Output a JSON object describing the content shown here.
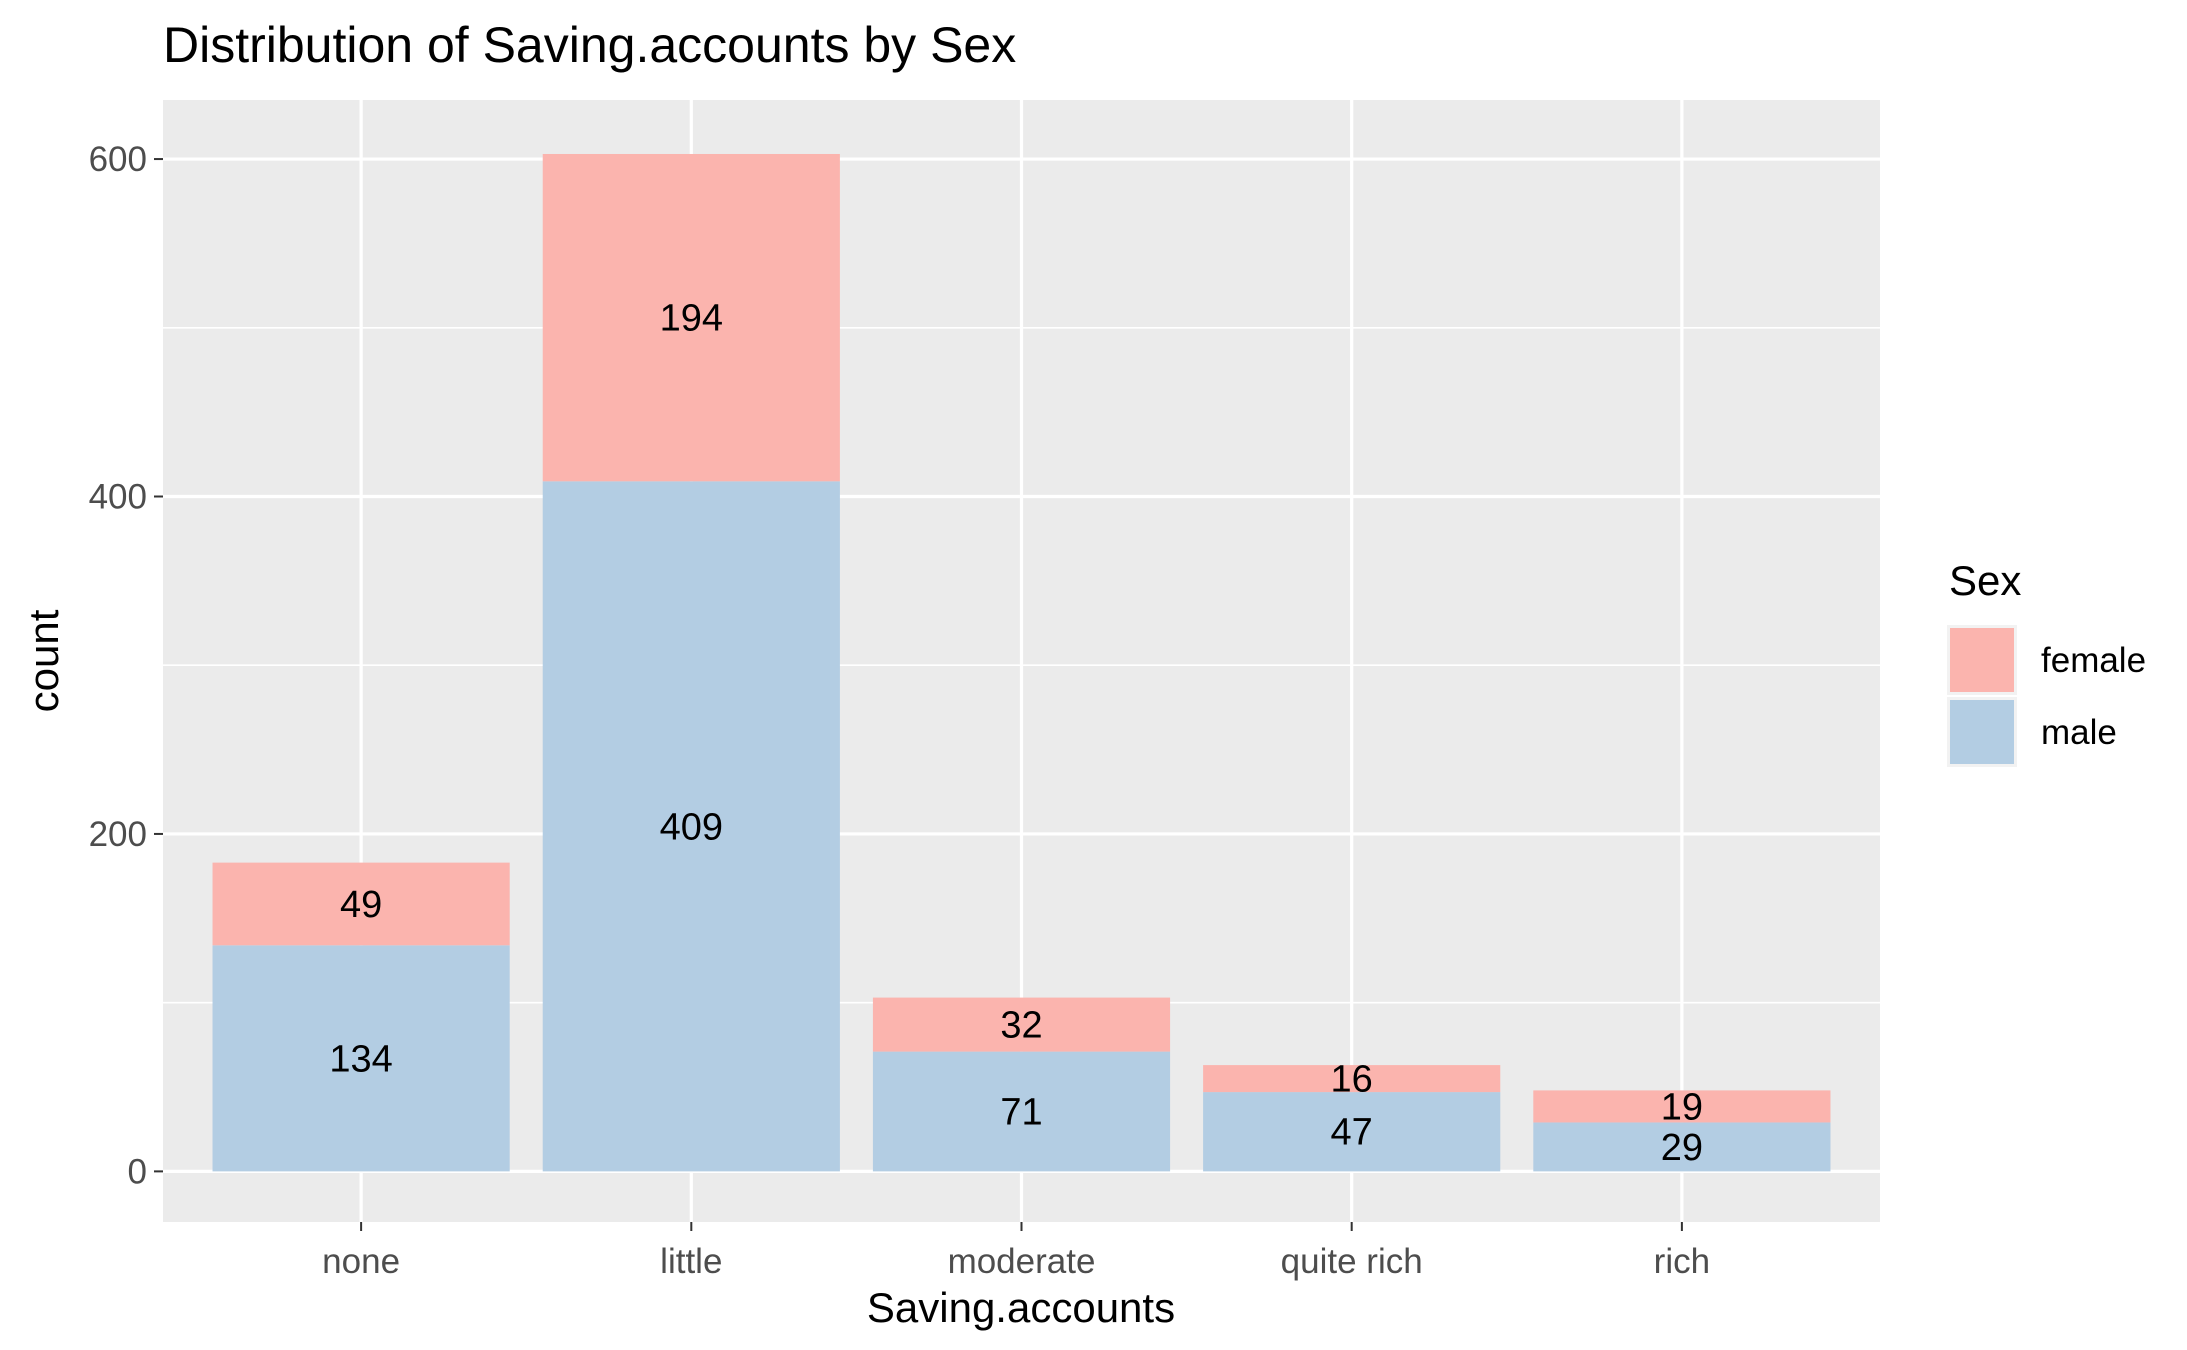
{
  "chart_data": {
    "type": "bar",
    "stacked": true,
    "title": "Distribution of Saving.accounts by Sex",
    "xlabel": "Saving.accounts",
    "ylabel": "count",
    "categories": [
      "none",
      "little",
      "moderate",
      "quite rich",
      "rich"
    ],
    "series": [
      {
        "name": "male",
        "values": [
          134,
          409,
          71,
          47,
          29
        ],
        "color": "#B3CDE3"
      },
      {
        "name": "female",
        "values": [
          49,
          194,
          32,
          16,
          19
        ],
        "color": "#FBB4AE"
      }
    ],
    "ylim": [
      -30,
      635
    ],
    "yticks": [
      0,
      200,
      400,
      600
    ],
    "grid": true,
    "legend": {
      "title": "Sex",
      "position": "right",
      "entries": [
        {
          "label": "female",
          "color": "#FBB4AE"
        },
        {
          "label": "male",
          "color": "#B3CDE3"
        }
      ]
    },
    "panel_background": "#EBEBEB",
    "grid_color": "#FFFFFF"
  }
}
